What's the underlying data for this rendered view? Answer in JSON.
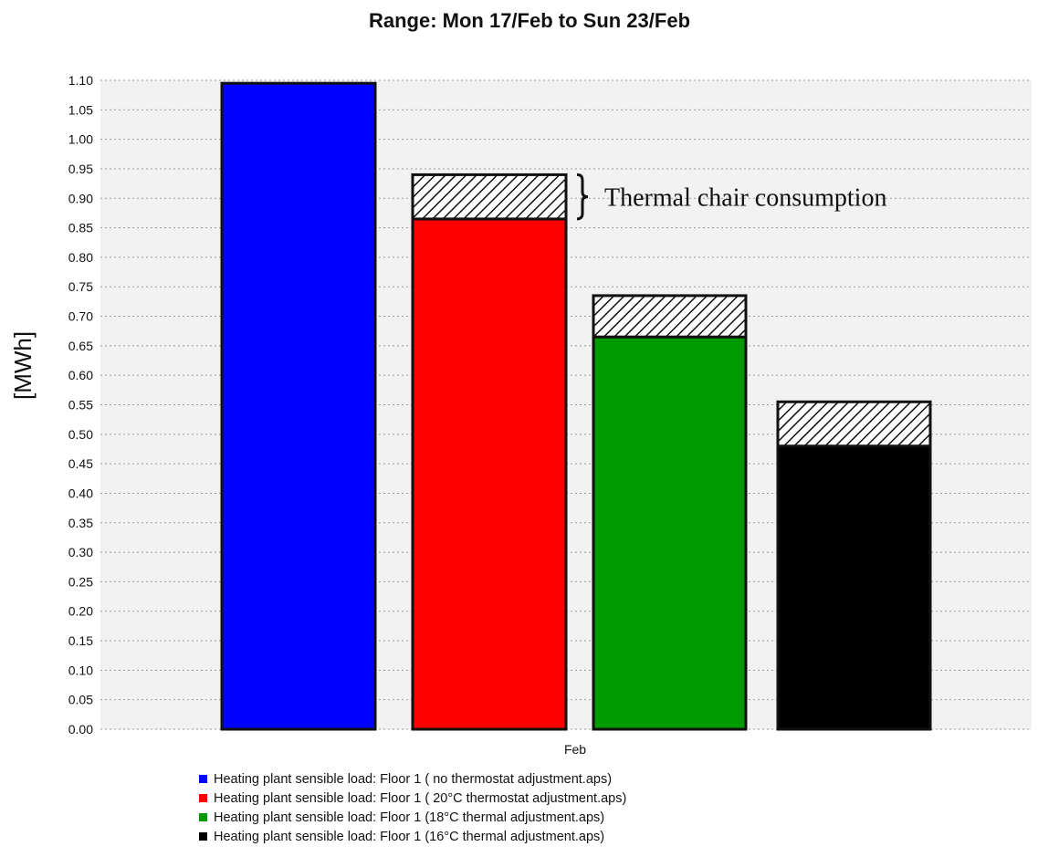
{
  "chart_data": {
    "type": "bar",
    "title": "Range: Mon 17/Feb to Sun 23/Feb",
    "ylabel": "[MWh]",
    "xlabel": "",
    "categories": [
      "Feb"
    ],
    "ylim": [
      0,
      1.1
    ],
    "ytick_step": 0.05,
    "grid": true,
    "series": [
      {
        "name": "Heating plant sensible load: Floor 1 ( no thermostat adjustment.aps)",
        "color": "#0000ff",
        "value": 1.095,
        "chair": 0
      },
      {
        "name": "Heating plant sensible load: Floor 1 ( 20°C thermostat adjustment.aps)",
        "color": "#ff0000",
        "value": 0.865,
        "chair": 0.075
      },
      {
        "name": "Heating plant sensible load: Floor 1 (18°C thermal adjustment.aps)",
        "color": "#009900",
        "value": 0.665,
        "chair": 0.07
      },
      {
        "name": "Heating plant sensible load: Floor 1 (16°C thermal adjustment.aps)",
        "color": "#000000",
        "value": 0.48,
        "chair": 0.075
      }
    ],
    "annotation": "Thermal chair consumption",
    "legend_position": "bottom"
  }
}
